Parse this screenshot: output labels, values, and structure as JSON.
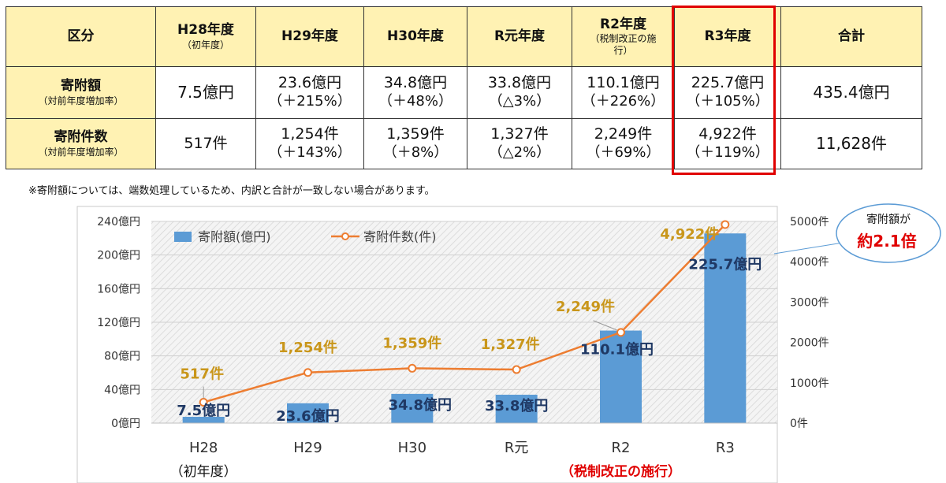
{
  "table": {
    "header": [
      {
        "label": "区分",
        "sub": ""
      },
      {
        "label": "H28年度",
        "sub": "（初年度）"
      },
      {
        "label": "H29年度",
        "sub": ""
      },
      {
        "label": "H30年度",
        "sub": ""
      },
      {
        "label": "R元年度",
        "sub": ""
      },
      {
        "label": "R2年度",
        "sub": "（税制改正の施行）"
      },
      {
        "label": "R3年度",
        "sub": ""
      },
      {
        "label": "合計",
        "sub": ""
      }
    ],
    "rows": [
      {
        "label": "寄附額",
        "sub": "（対前年度増加率）",
        "values": [
          "7.5億円",
          "23.6億円",
          "34.8億円",
          "33.8億円",
          "110.1億円",
          "225.7億円"
        ],
        "changes": [
          "",
          "（＋215%）",
          "（＋48%）",
          "（△3%）",
          "（＋226%）",
          "（＋105%）"
        ],
        "total": "435.4億円"
      },
      {
        "label": "寄附件数",
        "sub": "（対前年度増加率）",
        "values": [
          "517件",
          "1,254件",
          "1,359件",
          "1,327件",
          "2,249件",
          "4,922件"
        ],
        "changes": [
          "",
          "（＋143%）",
          "（＋8%）",
          "（△2%）",
          "（＋69%）",
          "（＋119%）"
        ],
        "total": "11,628件"
      }
    ],
    "highlight_color": "#e00000",
    "header_bg": "#fff2b3"
  },
  "note": "※寄附額については、端数処理しているため、内訳と合計が一致しない場合があります。",
  "callout": {
    "line1": "寄附額が",
    "line2": "約2.1倍"
  },
  "chart_data": {
    "type": "bar",
    "categories": [
      "H28",
      "H29",
      "H30",
      "R元",
      "R2",
      "R3"
    ],
    "category_sublabels": [
      "（初年度）",
      "",
      "",
      "",
      "（税制改正の施行）",
      ""
    ],
    "series": [
      {
        "name": "寄附額(億円)",
        "type": "bar",
        "axis": "left",
        "color": "#5b9bd5",
        "values": [
          7.5,
          23.6,
          34.8,
          33.8,
          110.1,
          225.7
        ],
        "labels": [
          "7.5億円",
          "23.6億円",
          "34.8億円",
          "33.8億円",
          "110.1億円",
          "225.7億円"
        ]
      },
      {
        "name": "寄附件数(件)",
        "type": "line",
        "axis": "right",
        "color": "#ed7d31",
        "values": [
          517,
          1254,
          1359,
          1327,
          2249,
          4922
        ],
        "labels": [
          "517件",
          "1,254件",
          "1,359件",
          "1,327件",
          "2,249件",
          "4,922件"
        ]
      }
    ],
    "y_left": {
      "range": [
        0,
        240
      ],
      "ticks": [
        "0億円",
        "40億円",
        "80億円",
        "120億円",
        "160億円",
        "200億円",
        "240億円"
      ],
      "tick_values": [
        0,
        40,
        80,
        120,
        160,
        200,
        240
      ]
    },
    "y_right": {
      "range": [
        0,
        5000
      ],
      "ticks": [
        "0件",
        "1000件",
        "2000件",
        "3000件",
        "4000件",
        "5000件"
      ],
      "tick_values": [
        0,
        1000,
        2000,
        3000,
        4000,
        5000
      ]
    },
    "grid": true,
    "legend": "top-left",
    "bar_label_color": "#1f3864",
    "line_label_color": "#c9961a",
    "sublabel_color": "#e00000"
  }
}
